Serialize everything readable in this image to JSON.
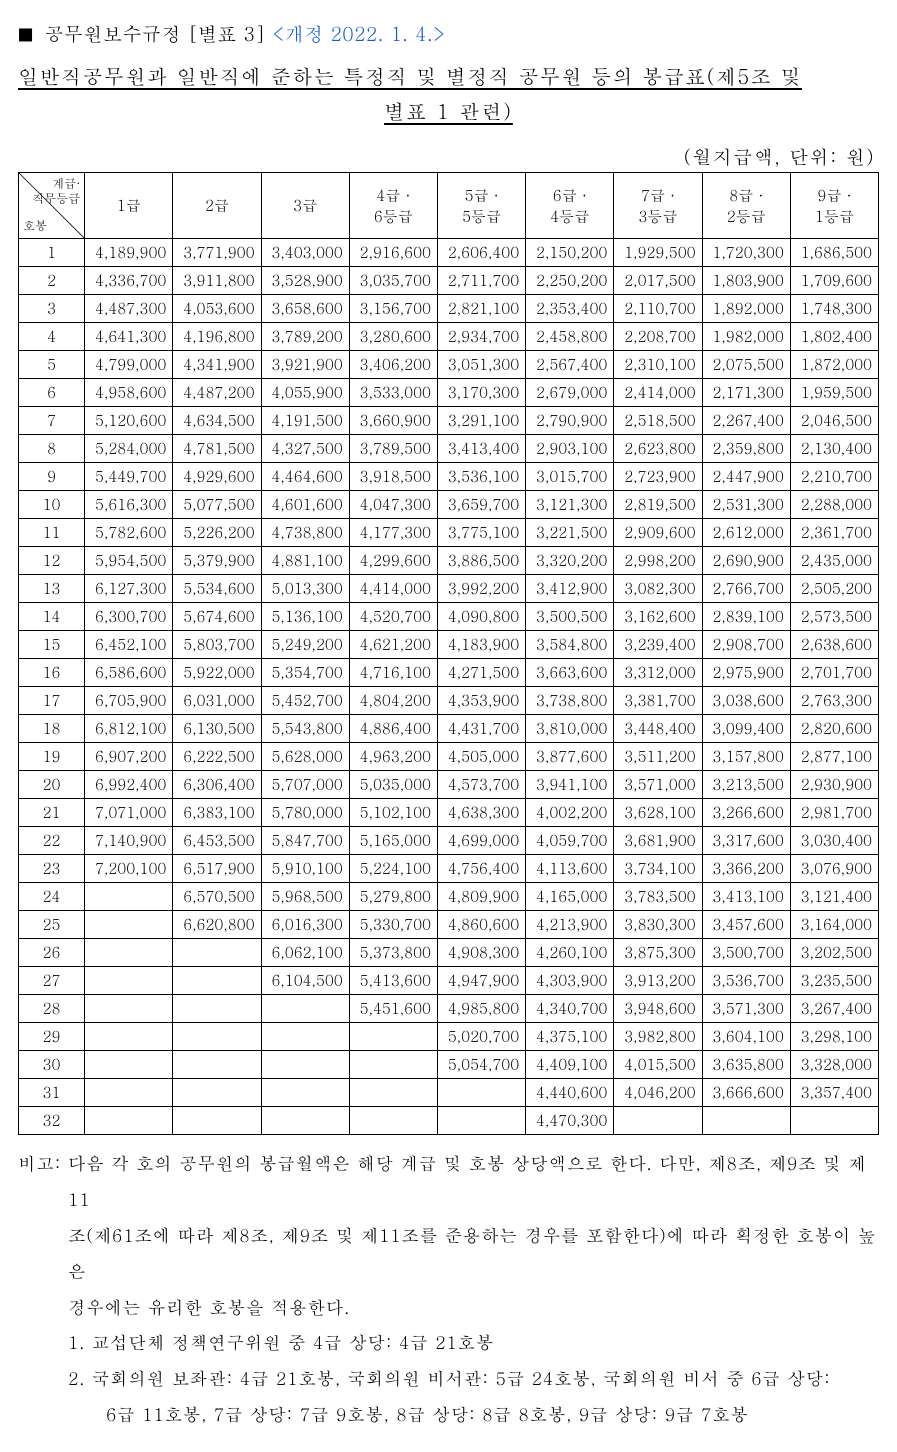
{
  "header": {
    "square": "■",
    "law_title": "공무원보수규정 [별표 3]",
    "amend": "<개정 2022. 1. 4.>"
  },
  "title": {
    "line1": "일반직공무원과 일반직에 준하는 특정직 및 별정직 공무원 등의 봉급표(제5조 및",
    "line2": "별표 1 관련)"
  },
  "unit_line": "(월지급액, 단위:  원)",
  "table": {
    "diag_top1": "계급·",
    "diag_top2": "직무등급",
    "diag_bottom": "호봉",
    "columns": [
      "1급",
      "2급",
      "3급",
      "4급 ·\n6등급",
      "5급 ·\n5등급",
      "6급 ·\n4등급",
      "7급 ·\n3등급",
      "8급 ·\n2등급",
      "9급 ·\n1등급"
    ],
    "rows": [
      [
        "1",
        "4,189,900",
        "3,771,900",
        "3,403,000",
        "2,916,600",
        "2,606,400",
        "2,150,200",
        "1,929,500",
        "1,720,300",
        "1,686,500"
      ],
      [
        "2",
        "4,336,700",
        "3,911,800",
        "3,528,900",
        "3,035,700",
        "2,711,700",
        "2,250,200",
        "2,017,500",
        "1,803,900",
        "1,709,600"
      ],
      [
        "3",
        "4,487,300",
        "4,053,600",
        "3,658,600",
        "3,156,700",
        "2,821,100",
        "2,353,400",
        "2,110,700",
        "1,892,000",
        "1,748,300"
      ],
      [
        "4",
        "4,641,300",
        "4,196,800",
        "3,789,200",
        "3,280,600",
        "2,934,700",
        "2,458,800",
        "2,208,700",
        "1,982,000",
        "1,802,400"
      ],
      [
        "5",
        "4,799,000",
        "4,341,900",
        "3,921,900",
        "3,406,200",
        "3,051,300",
        "2,567,400",
        "2,310,100",
        "2,075,500",
        "1,872,000"
      ],
      [
        "6",
        "4,958,600",
        "4,487,200",
        "4,055,900",
        "3,533,000",
        "3,170,300",
        "2,679,000",
        "2,414,000",
        "2,171,300",
        "1,959,500"
      ],
      [
        "7",
        "5,120,600",
        "4,634,500",
        "4,191,500",
        "3,660,900",
        "3,291,100",
        "2,790,900",
        "2,518,500",
        "2,267,400",
        "2,046,500"
      ],
      [
        "8",
        "5,284,000",
        "4,781,500",
        "4,327,500",
        "3,789,500",
        "3,413,400",
        "2,903,100",
        "2,623,800",
        "2,359,800",
        "2,130,400"
      ],
      [
        "9",
        "5,449,700",
        "4,929,600",
        "4,464,600",
        "3,918,500",
        "3,536,100",
        "3,015,700",
        "2,723,900",
        "2,447,900",
        "2,210,700"
      ],
      [
        "10",
        "5,616,300",
        "5,077,500",
        "4,601,600",
        "4,047,300",
        "3,659,700",
        "3,121,300",
        "2,819,500",
        "2,531,300",
        "2,288,000"
      ],
      [
        "11",
        "5,782,600",
        "5,226,200",
        "4,738,800",
        "4,177,300",
        "3,775,100",
        "3,221,500",
        "2,909,600",
        "2,612,000",
        "2,361,700"
      ],
      [
        "12",
        "5,954,500",
        "5,379,900",
        "4,881,100",
        "4,299,600",
        "3,886,500",
        "3,320,200",
        "2,998,200",
        "2,690,900",
        "2,435,000"
      ],
      [
        "13",
        "6,127,300",
        "5,534,600",
        "5,013,300",
        "4,414,000",
        "3,992,200",
        "3,412,900",
        "3,082,300",
        "2,766,700",
        "2,505,200"
      ],
      [
        "14",
        "6,300,700",
        "5,674,600",
        "5,136,100",
        "4,520,700",
        "4,090,800",
        "3,500,500",
        "3,162,600",
        "2,839,100",
        "2,573,500"
      ],
      [
        "15",
        "6,452,100",
        "5,803,700",
        "5,249,200",
        "4,621,200",
        "4,183,900",
        "3,584,800",
        "3,239,400",
        "2,908,700",
        "2,638,600"
      ],
      [
        "16",
        "6,586,600",
        "5,922,000",
        "5,354,700",
        "4,716,100",
        "4,271,500",
        "3,663,600",
        "3,312,000",
        "2,975,900",
        "2,701,700"
      ],
      [
        "17",
        "6,705,900",
        "6,031,000",
        "5,452,700",
        "4,804,200",
        "4,353,900",
        "3,738,800",
        "3,381,700",
        "3,038,600",
        "2,763,300"
      ],
      [
        "18",
        "6,812,100",
        "6,130,500",
        "5,543,800",
        "4,886,400",
        "4,431,700",
        "3,810,000",
        "3,448,400",
        "3,099,400",
        "2,820,600"
      ],
      [
        "19",
        "6,907,200",
        "6,222,500",
        "5,628,000",
        "4,963,200",
        "4,505,000",
        "3,877,600",
        "3,511,200",
        "3,157,800",
        "2,877,100"
      ],
      [
        "20",
        "6,992,400",
        "6,306,400",
        "5,707,000",
        "5,035,000",
        "4,573,700",
        "3,941,100",
        "3,571,000",
        "3,213,500",
        "2,930,900"
      ],
      [
        "21",
        "7,071,000",
        "6,383,100",
        "5,780,000",
        "5,102,100",
        "4,638,300",
        "4,002,200",
        "3,628,100",
        "3,266,600",
        "2,981,700"
      ],
      [
        "22",
        "7,140,900",
        "6,453,500",
        "5,847,700",
        "5,165,000",
        "4,699,000",
        "4,059,700",
        "3,681,900",
        "3,317,600",
        "3,030,400"
      ],
      [
        "23",
        "7,200,100",
        "6,517,900",
        "5,910,100",
        "5,224,100",
        "4,756,400",
        "4,113,600",
        "3,734,100",
        "3,366,200",
        "3,076,900"
      ],
      [
        "24",
        "",
        "6,570,500",
        "5,968,500",
        "5,279,800",
        "4,809,900",
        "4,165,000",
        "3,783,500",
        "3,413,100",
        "3,121,400"
      ],
      [
        "25",
        "",
        "6,620,800",
        "6,016,300",
        "5,330,700",
        "4,860,600",
        "4,213,900",
        "3,830,300",
        "3,457,600",
        "3,164,000"
      ],
      [
        "26",
        "",
        "",
        "6,062,100",
        "5,373,800",
        "4,908,300",
        "4,260,100",
        "3,875,300",
        "3,500,700",
        "3,202,500"
      ],
      [
        "27",
        "",
        "",
        "6,104,500",
        "5,413,600",
        "4,947,900",
        "4,303,900",
        "3,913,200",
        "3,536,700",
        "3,235,500"
      ],
      [
        "28",
        "",
        "",
        "",
        "5,451,600",
        "4,985,800",
        "4,340,700",
        "3,948,600",
        "3,571,300",
        "3,267,400"
      ],
      [
        "29",
        "",
        "",
        "",
        "",
        "5,020,700",
        "4,375,100",
        "3,982,800",
        "3,604,100",
        "3,298,100"
      ],
      [
        "30",
        "",
        "",
        "",
        "",
        "5,054,700",
        "4,409,100",
        "4,015,500",
        "3,635,800",
        "3,328,000"
      ],
      [
        "31",
        "",
        "",
        "",
        "",
        "",
        "4,440,600",
        "4,046,200",
        "3,666,600",
        "3,357,400"
      ],
      [
        "32",
        "",
        "",
        "",
        "",
        "",
        "4,470,300",
        "",
        "",
        ""
      ]
    ]
  },
  "notes": {
    "main1": "비고: 다음 각 호의 공무원의 봉급월액은 해당 계급 및 호봉 상당액으로 한다. 다만, 제8조, 제9조 및 제11",
    "main2": "조(제61조에 따라 제8조, 제9조 및 제11조를 준용하는 경우를 포함한다)에 따라 획정한 호봉이 높은",
    "main3": "경우에는 유리한 호봉을 적용한다.",
    "item1": "1. 교섭단체 정책연구위원 중 4급 상당: 4급 21호봉",
    "item2": "2. 국회의원 보좌관: 4급 21호봉, 국회의원 비서관: 5급 24호봉, 국회의원 비서 중 6급 상당:",
    "item2c": "6급 11호봉, 7급 상당: 7급 9호봉, 8급 상당: 8급 8호봉, 9급 상당: 9급 7호봉"
  }
}
